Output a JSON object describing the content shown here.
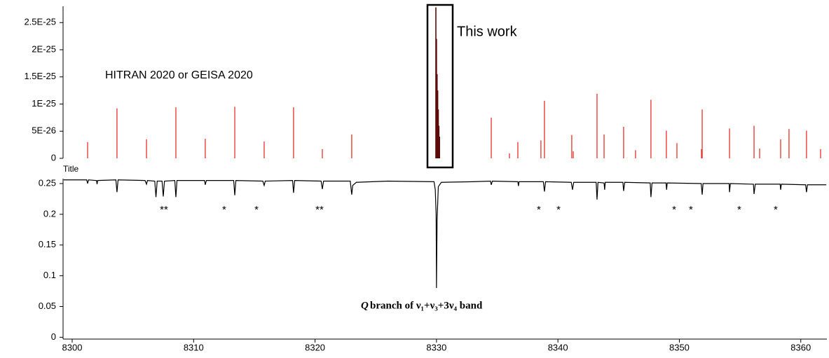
{
  "chart_data": [
    {
      "type": "stick",
      "xlim": [
        8299.25,
        8362.15
      ],
      "ylim": [
        0,
        2.8e-25
      ],
      "yticks": [
        0,
        {
          "value": 5e-26,
          "label": "5E-26"
        },
        {
          "value": 1e-25,
          "label": "1E-25"
        },
        {
          "value": 1.5e-25,
          "label": "1.5E-25"
        },
        {
          "value": 2e-25,
          "label": "2E-25"
        },
        {
          "value": 2.5e-25,
          "label": "2.5E-25"
        }
      ],
      "series": [
        {
          "name": "HITRAN 2020 or GEISA 2020",
          "color": "#e8302a",
          "x": [
            8301.27,
            8303.69,
            8306.12,
            8308.54,
            8310.96,
            8313.39,
            8315.81,
            8318.23,
            8320.6,
            8323.02,
            8334.51,
            8336.01,
            8336.7,
            8338.6,
            8338.89,
            8341.14,
            8341.26,
            8343.22,
            8343.8,
            8345.41,
            8346.39,
            8347.66,
            8348.93,
            8349.8,
            8351.82,
            8351.88,
            8354.13,
            8356.15,
            8356.61,
            8358.34,
            8359.03,
            8360.47,
            8361.63
          ],
          "values": [
            3e-26,
            9.2e-26,
            3.5e-26,
            9.4e-26,
            3.6e-26,
            9.5e-26,
            3.1e-26,
            9.4e-26,
            1.7e-26,
            4.4e-26,
            7.5e-26,
            9e-27,
            3e-26,
            3.3e-26,
            1.06e-25,
            4.3e-26,
            1.3e-26,
            1.19e-25,
            4.4e-26,
            5.8e-26,
            1.5e-26,
            1.08e-25,
            5.1e-26,
            2.8e-26,
            1.7e-26,
            9e-26,
            5.5e-26,
            6e-26,
            1.8e-26,
            3.5e-26,
            5.4e-26,
            5.1e-26,
            1.7e-26
          ]
        },
        {
          "name": "This work",
          "color": "#5c0b0b",
          "x": [
            8329.95,
            8330.0,
            8330.05,
            8330.1,
            8330.15,
            8330.2,
            8330.25
          ],
          "values": [
            2.78e-25,
            2.2e-25,
            1.55e-25,
            1.25e-25,
            9e-26,
            6e-26,
            4e-26
          ]
        }
      ]
    },
    {
      "type": "line",
      "title": "Title",
      "xlim": [
        8299.25,
        8362.15
      ],
      "ylim": [
        -0.003,
        0.258
      ],
      "xticks": [
        8300,
        8310,
        8320,
        8330,
        8340,
        8350,
        8360
      ],
      "yticks": [
        0,
        0.05,
        0.1,
        0.15,
        0.2,
        0.25
      ],
      "color": "#000000",
      "x": [
        8299.3,
        8301.2,
        8301.27,
        8301.35,
        8302.0,
        8302.05,
        8302.1,
        8303.6,
        8303.69,
        8303.78,
        8306.0,
        8306.12,
        8306.2,
        8306.8,
        8306.9,
        8307.0,
        8307.4,
        8307.5,
        8307.6,
        8308.45,
        8308.54,
        8308.63,
        8310.9,
        8310.96,
        8311.05,
        8313.3,
        8313.39,
        8313.48,
        8315.7,
        8315.81,
        8315.9,
        8318.15,
        8318.23,
        8318.32,
        8320.5,
        8320.6,
        8320.7,
        8322.9,
        8323.02,
        8323.1,
        8323.4,
        8326.0,
        8329.8,
        8329.9,
        8329.97,
        8330.0,
        8330.05,
        8330.15,
        8330.4,
        8333.0,
        8334.45,
        8334.51,
        8334.6,
        8336.7,
        8336.75,
        8336.8,
        8338.8,
        8338.89,
        8338.98,
        8341.1,
        8341.2,
        8341.3,
        8343.15,
        8343.22,
        8343.3,
        8343.8,
        8343.85,
        8343.9,
        8345.35,
        8345.41,
        8345.5,
        8347.6,
        8347.66,
        8347.75,
        8348.9,
        8348.95,
        8349.0,
        8351.8,
        8351.88,
        8351.95,
        8354.1,
        8354.13,
        8354.2,
        8356.1,
        8356.15,
        8356.25,
        8358.3,
        8358.34,
        8358.4,
        8360.4,
        8360.47,
        8360.55,
        8362.1
      ],
      "values": [
        0.256,
        0.256,
        0.25,
        0.256,
        0.255,
        0.249,
        0.255,
        0.256,
        0.236,
        0.256,
        0.255,
        0.249,
        0.255,
        0.254,
        0.228,
        0.254,
        0.254,
        0.229,
        0.254,
        0.255,
        0.228,
        0.255,
        0.255,
        0.248,
        0.255,
        0.255,
        0.231,
        0.255,
        0.254,
        0.247,
        0.254,
        0.255,
        0.235,
        0.255,
        0.254,
        0.241,
        0.254,
        0.254,
        0.232,
        0.247,
        0.252,
        0.254,
        0.253,
        0.24,
        0.2,
        0.08,
        0.19,
        0.245,
        0.252,
        0.253,
        0.254,
        0.248,
        0.254,
        0.253,
        0.246,
        0.253,
        0.253,
        0.237,
        0.253,
        0.252,
        0.24,
        0.252,
        0.252,
        0.224,
        0.252,
        0.251,
        0.24,
        0.252,
        0.252,
        0.238,
        0.252,
        0.251,
        0.228,
        0.251,
        0.251,
        0.24,
        0.251,
        0.25,
        0.232,
        0.25,
        0.25,
        0.236,
        0.25,
        0.249,
        0.233,
        0.249,
        0.249,
        0.24,
        0.249,
        0.248,
        0.236,
        0.248,
        0.248
      ],
      "annotations": [
        {
          "text": "**",
          "x": 8307.56
        },
        {
          "text": "*",
          "x": 8312.52
        },
        {
          "text": "*",
          "x": 8315.18
        },
        {
          "text": "**",
          "x": 8320.37
        },
        {
          "text": "*",
          "x": 8338.43
        },
        {
          "text": "*",
          "x": 8340.05
        },
        {
          "text": "*",
          "x": 8349.57
        },
        {
          "text": "*",
          "x": 8350.95
        },
        {
          "text": "*",
          "x": 8354.93
        },
        {
          "text": "*",
          "x": 8357.93
        }
      ],
      "band_label": {
        "symbol": "Q",
        "text": " branch of ν₁+ν₃+3ν₄ band"
      }
    }
  ]
}
